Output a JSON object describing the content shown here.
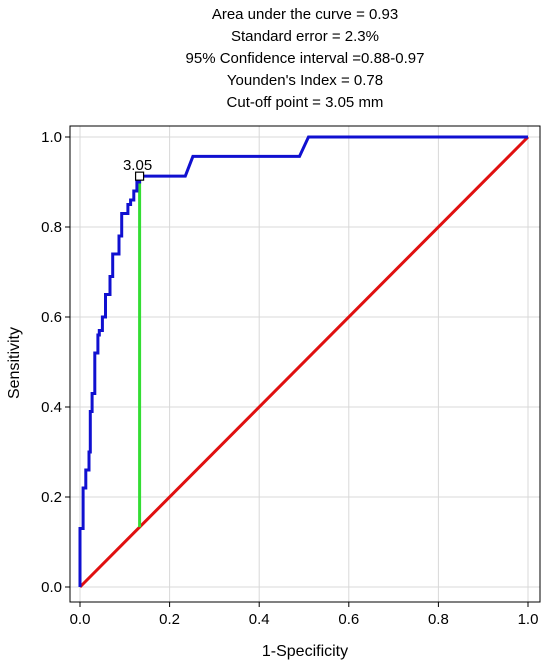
{
  "chart_data": {
    "type": "line",
    "title_lines": [
      "Area under the curve = 0.93",
      "Standard error = 2.3%",
      "95% Confidence interval =0.88-0.97",
      "Younden's Index = 0.78",
      "Cut-off point = 3.05 mm"
    ],
    "xlabel": "1-Specificity",
    "ylabel": "Sensitivity",
    "xlim": [
      0.0,
      1.0
    ],
    "ylim": [
      0.0,
      1.0
    ],
    "x_ticks": [
      "0.0",
      "0.2",
      "0.4",
      "0.6",
      "0.8",
      "1.0"
    ],
    "y_ticks": [
      "0.0",
      "0.2",
      "0.4",
      "0.6",
      "0.8",
      "1.0"
    ],
    "grid": true,
    "colors": {
      "roc": "#1010d0",
      "reference": "#e01010",
      "cutoff": "#33dd33",
      "grid": "#d8d8d8"
    },
    "series": [
      {
        "role": "roc",
        "x": [
          0.0,
          0.0,
          0.007,
          0.007,
          0.013,
          0.013,
          0.02,
          0.02,
          0.023,
          0.023,
          0.027,
          0.027,
          0.033,
          0.033,
          0.04,
          0.04,
          0.043,
          0.043,
          0.05,
          0.05,
          0.057,
          0.057,
          0.06,
          0.06,
          0.067,
          0.067,
          0.073,
          0.073,
          0.08,
          0.08,
          0.087,
          0.087,
          0.093,
          0.093,
          0.1,
          0.1,
          0.107,
          0.107,
          0.113,
          0.113,
          0.12,
          0.12,
          0.127,
          0.127,
          0.133,
          0.133,
          0.235,
          0.252,
          0.49,
          0.51,
          1.0
        ],
        "y": [
          0.0,
          0.13,
          0.13,
          0.22,
          0.22,
          0.26,
          0.26,
          0.3,
          0.3,
          0.39,
          0.39,
          0.43,
          0.43,
          0.52,
          0.52,
          0.56,
          0.56,
          0.57,
          0.57,
          0.6,
          0.6,
          0.65,
          0.65,
          0.65,
          0.65,
          0.69,
          0.69,
          0.74,
          0.74,
          0.74,
          0.74,
          0.78,
          0.78,
          0.83,
          0.83,
          0.83,
          0.83,
          0.85,
          0.85,
          0.86,
          0.86,
          0.88,
          0.88,
          0.9,
          0.9,
          0.913,
          0.913,
          0.957,
          0.957,
          1.0,
          1.0
        ]
      },
      {
        "role": "reference",
        "x": [
          0.0,
          1.0
        ],
        "y": [
          0.0,
          1.0
        ]
      },
      {
        "role": "cutoff",
        "x": [
          0.133,
          0.133
        ],
        "y": [
          0.133,
          0.913
        ]
      }
    ],
    "annotations": [
      {
        "text": "3.05",
        "x": 0.133,
        "y": 0.913
      }
    ]
  }
}
